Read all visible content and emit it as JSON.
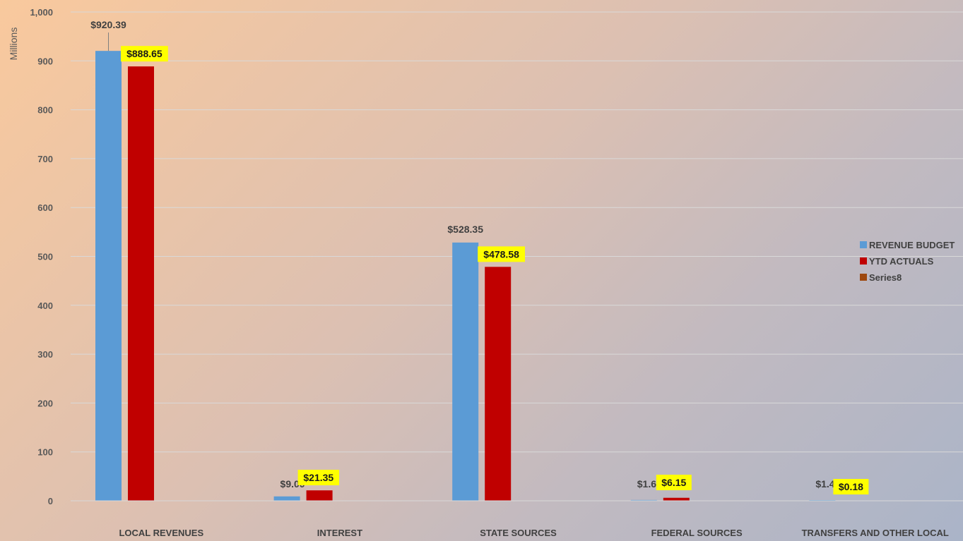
{
  "chart_data": {
    "type": "bar",
    "categories": [
      "LOCAL REVENUES",
      "INTEREST",
      "STATE SOURCES",
      "FEDERAL SOURCES",
      "TRANSFERS AND OTHER LOCAL"
    ],
    "series": [
      {
        "name": "REVENUE BUDGET",
        "color": "#5b9bd5",
        "values": [
          920.39,
          9.0,
          528.35,
          1.65,
          1.43
        ],
        "labels": [
          "$920.39",
          "$9.00",
          "$528.35",
          "$1.65",
          "$1.43"
        ]
      },
      {
        "name": "YTD ACTUALS",
        "color": "#c00000",
        "values": [
          888.65,
          21.35,
          478.58,
          6.15,
          0.18
        ],
        "labels": [
          "$888.65",
          "$21.35",
          "$478.58",
          "$6.15",
          "$0.18"
        ]
      },
      {
        "name": "Series8",
        "color": "#9e480e",
        "values": [
          0,
          0,
          0,
          0,
          0
        ],
        "labels": []
      }
    ],
    "ylabel": "Millions",
    "ylim": [
      0,
      1000
    ],
    "yticks": [
      0,
      100,
      200,
      300,
      400,
      500,
      600,
      700,
      800,
      900,
      1000
    ],
    "ytick_labels": [
      "0",
      "100",
      "200",
      "300",
      "400",
      "500",
      "600",
      "700",
      "800",
      "900",
      "1,000"
    ],
    "grid": true,
    "legend_position": "right",
    "label_highlight_color": "#ffff00"
  }
}
